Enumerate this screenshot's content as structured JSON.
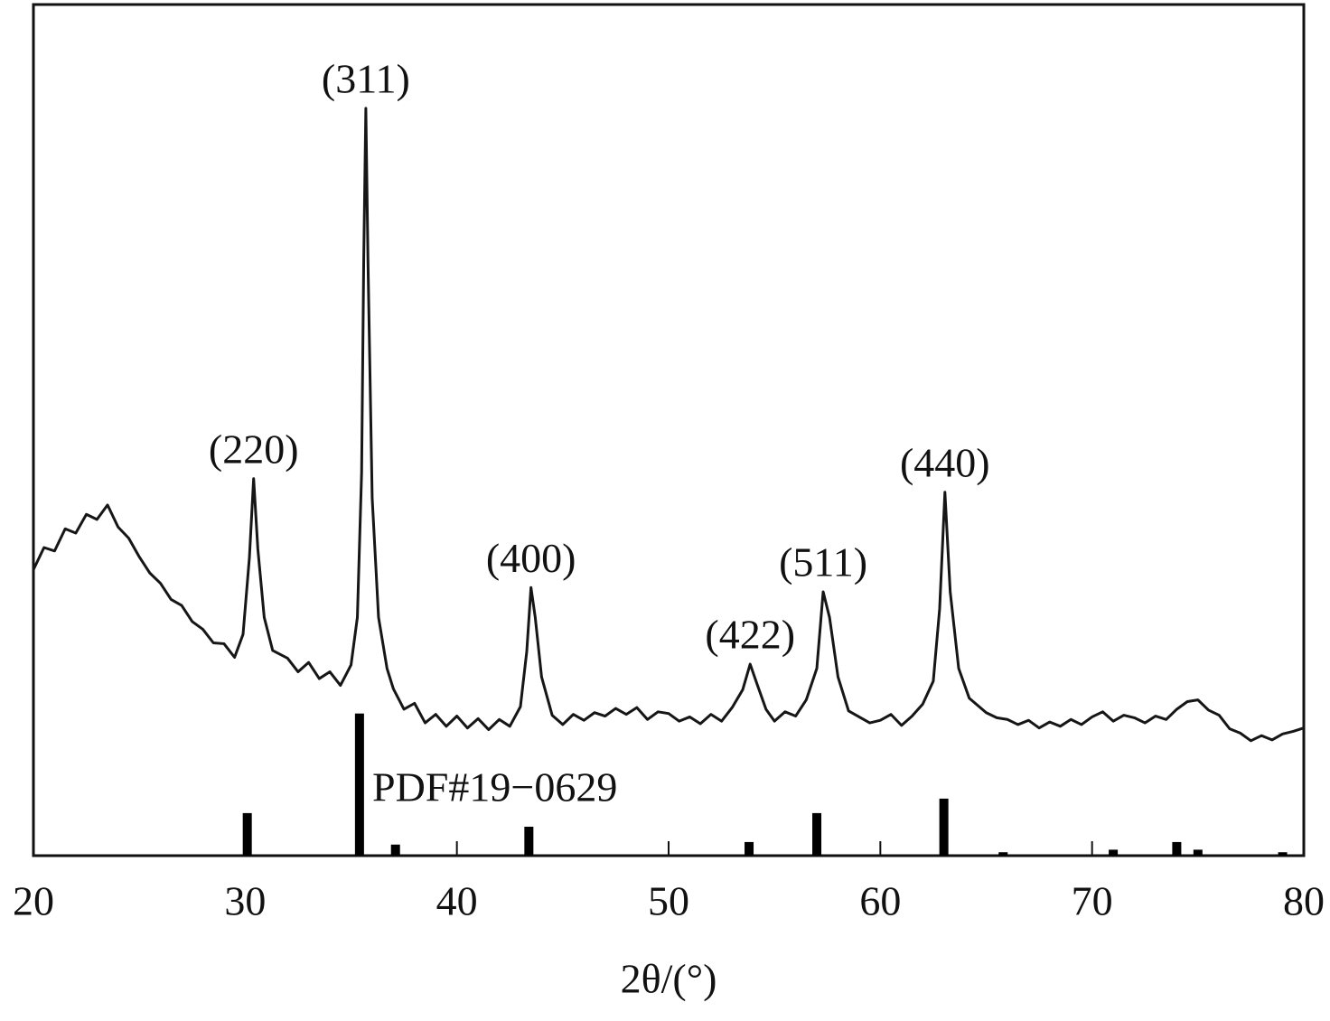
{
  "chart_data": {
    "type": "line",
    "xlabel": "2θ/(°)",
    "xlim": [
      20,
      80
    ],
    "ylim": [
      0,
      100
    ],
    "xticks": [
      20,
      30,
      40,
      50,
      60,
      70,
      80
    ],
    "grid": false,
    "series": [
      {
        "type": "line",
        "color": "#161616",
        "x": [
          20,
          20.5,
          21,
          21.5,
          22,
          22.5,
          23,
          23.5,
          24,
          24.5,
          25,
          25.5,
          26,
          26.5,
          27,
          27.5,
          28,
          28.5,
          29,
          29.5,
          29.9,
          30.2,
          30.4,
          30.6,
          30.9,
          31.3,
          32,
          32.5,
          33,
          33.5,
          34,
          34.5,
          35,
          35.3,
          35.5,
          35.6,
          35.7,
          35.8,
          36,
          36.3,
          36.7,
          37,
          37.5,
          38,
          38.5,
          39,
          39.5,
          40,
          40.5,
          41,
          41.5,
          42,
          42.5,
          43,
          43.3,
          43.5,
          43.7,
          44,
          44.5,
          45,
          45.5,
          46,
          46.5,
          47,
          47.5,
          48,
          48.5,
          49,
          49.5,
          50,
          50.5,
          51,
          51.5,
          52,
          52.5,
          53,
          53.5,
          53.85,
          54.2,
          54.6,
          55,
          55.5,
          56,
          56.5,
          57,
          57.3,
          57.6,
          58,
          58.5,
          59,
          59.5,
          60,
          60.5,
          61,
          61.5,
          62,
          62.5,
          62.8,
          63.05,
          63.3,
          63.7,
          64.2,
          65,
          65.5,
          66,
          66.5,
          67,
          67.5,
          68,
          68.5,
          69,
          69.5,
          70,
          70.5,
          71,
          71.5,
          72,
          72.5,
          73,
          73.5,
          74,
          74.5,
          75,
          75.5,
          76,
          76.5,
          77,
          77.5,
          78,
          78.5,
          79,
          79.5,
          80
        ],
        "values": [
          33.6,
          36.2,
          35.8,
          38.4,
          37.9,
          40.1,
          39.5,
          41.2,
          38.6,
          37.3,
          35.1,
          33.2,
          32.0,
          30.1,
          29.4,
          27.5,
          26.6,
          25.0,
          24.9,
          23.3,
          26.0,
          35.0,
          44.3,
          36.0,
          28.0,
          24.1,
          23.2,
          21.6,
          22.7,
          20.8,
          21.6,
          20.0,
          22.4,
          28.0,
          45.0,
          70.0,
          87.8,
          70.0,
          42.0,
          28.0,
          22.0,
          19.6,
          17.2,
          17.9,
          15.6,
          16.6,
          15.2,
          16.4,
          15.0,
          16.1,
          14.8,
          16.0,
          15.2,
          17.5,
          24.0,
          31.5,
          28.0,
          21.0,
          16.5,
          15.4,
          16.6,
          15.9,
          16.8,
          16.4,
          17.3,
          16.6,
          17.4,
          16.0,
          16.9,
          16.7,
          15.8,
          16.3,
          15.5,
          16.6,
          15.8,
          17.4,
          19.5,
          22.5,
          20.0,
          17.2,
          15.8,
          16.9,
          16.4,
          18.3,
          22.0,
          31.0,
          28.0,
          21.0,
          17.0,
          16.3,
          15.6,
          15.9,
          16.6,
          15.3,
          16.4,
          17.8,
          20.5,
          29.0,
          42.7,
          31.0,
          22.0,
          18.5,
          16.8,
          16.2,
          16.0,
          15.4,
          15.9,
          15.0,
          15.7,
          15.2,
          16.0,
          15.4,
          16.3,
          16.9,
          15.8,
          16.5,
          16.2,
          15.6,
          16.4,
          16.0,
          17.2,
          18.1,
          18.3,
          17.1,
          16.5,
          14.9,
          14.4,
          13.5,
          14.1,
          13.6,
          14.3,
          14.6,
          15.0
        ]
      },
      {
        "type": "bar",
        "color": "#000000",
        "x": [
          30.1,
          35.4,
          37.1,
          43.4,
          53.8,
          57.0,
          63.0,
          65.8,
          71.0,
          74.0,
          75.0,
          79.0
        ],
        "values": [
          5.0,
          16.7,
          1.3,
          3.4,
          1.6,
          5.0,
          6.7,
          0.4,
          0.7,
          1.6,
          0.7,
          0.4
        ]
      }
    ],
    "annotations": [
      {
        "text": "(220)",
        "x": 30.4,
        "y": 44.3
      },
      {
        "text": "(311)",
        "x": 35.7,
        "y": 87.8
      },
      {
        "text": "(400)",
        "x": 43.5,
        "y": 31.5
      },
      {
        "text": "(422)",
        "x": 53.85,
        "y": 22.5
      },
      {
        "text": "(511)",
        "x": 57.3,
        "y": 31.0
      },
      {
        "text": "(440)",
        "x": 63.05,
        "y": 42.7
      }
    ],
    "reference_label": "PDF#19−0629"
  }
}
